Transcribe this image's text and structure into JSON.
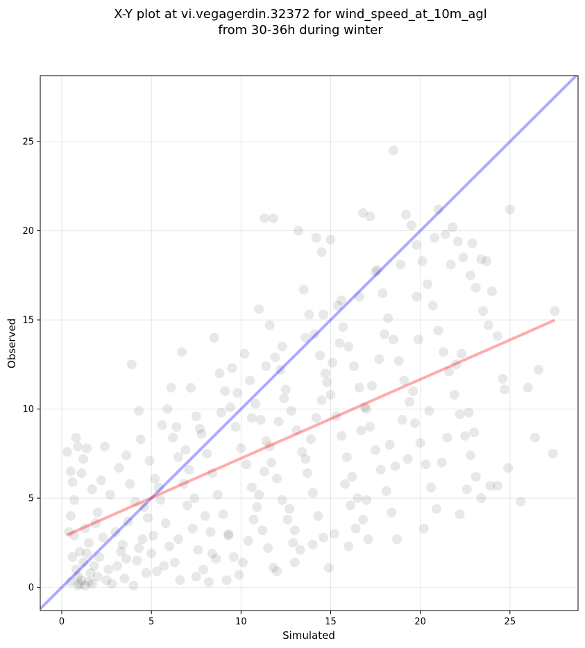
{
  "chart_data": {
    "type": "scatter",
    "title_line1": "X-Y plot at vi.vegagerdin.32372 for wind_speed_at_10m_agl",
    "title_line2": "from 30-36h during winter",
    "xlabel": "Simulated",
    "ylabel": "Observed",
    "xlim": [
      -1.2,
      28.8
    ],
    "ylim": [
      -1.3,
      28.7
    ],
    "xticks": [
      0,
      5,
      10,
      15,
      20,
      25
    ],
    "yticks": [
      0,
      5,
      10,
      15,
      20,
      25
    ],
    "grid": true,
    "point_color": "#000000",
    "point_alpha": 0.09,
    "points": [
      [
        1.0,
        0.2
      ],
      [
        1.1,
        0.4
      ],
      [
        0.9,
        0.6
      ],
      [
        1.3,
        0.1
      ],
      [
        1.5,
        0.3
      ],
      [
        0.8,
        1.0
      ],
      [
        1.2,
        1.4
      ],
      [
        1.0,
        2.0
      ],
      [
        1.6,
        0.8
      ],
      [
        1.8,
        1.2
      ],
      [
        2.0,
        0.6
      ],
      [
        0.5,
        0.3
      ],
      [
        0.6,
        1.7
      ],
      [
        0.7,
        2.9
      ],
      [
        0.4,
        3.1
      ],
      [
        0.5,
        4.0
      ],
      [
        0.7,
        4.9
      ],
      [
        0.6,
        5.9
      ],
      [
        0.5,
        6.5
      ],
      [
        0.3,
        7.6
      ],
      [
        0.8,
        8.4
      ],
      [
        0.9,
        7.9
      ],
      [
        1.2,
        7.2
      ],
      [
        1.4,
        7.8
      ],
      [
        1.1,
        6.4
      ],
      [
        1.7,
        5.5
      ],
      [
        2.2,
        6.0
      ],
      [
        2.4,
        7.9
      ],
      [
        2.0,
        4.2
      ],
      [
        2.7,
        5.2
      ],
      [
        3.0,
        3.1
      ],
      [
        3.3,
        2.0
      ],
      [
        2.6,
        1.0
      ],
      [
        3.5,
        0.5
      ],
      [
        4.0,
        0.1
      ],
      [
        4.2,
        1.5
      ],
      [
        4.5,
        2.7
      ],
      [
        4.8,
        3.9
      ],
      [
        4.1,
        4.8
      ],
      [
        3.8,
        5.8
      ],
      [
        3.2,
        6.7
      ],
      [
        3.6,
        7.4
      ],
      [
        4.4,
        8.3
      ],
      [
        3.9,
        12.5
      ],
      [
        4.3,
        9.9
      ],
      [
        4.9,
        7.1
      ],
      [
        5.2,
        6.1
      ],
      [
        5.5,
        4.9
      ],
      [
        5.8,
        3.6
      ],
      [
        6.0,
        2.3
      ],
      [
        6.3,
        1.4
      ],
      [
        6.6,
        0.4
      ],
      [
        5.3,
        0.9
      ],
      [
        5.0,
        1.9
      ],
      [
        5.6,
        9.1
      ],
      [
        5.9,
        10.0
      ],
      [
        6.2,
        8.4
      ],
      [
        6.5,
        7.3
      ],
      [
        6.8,
        5.8
      ],
      [
        7.0,
        4.6
      ],
      [
        7.3,
        3.3
      ],
      [
        7.6,
        2.1
      ],
      [
        7.9,
        1.0
      ],
      [
        8.2,
        0.3
      ],
      [
        6.7,
        13.2
      ],
      [
        7.2,
        11.2
      ],
      [
        7.5,
        9.6
      ],
      [
        7.8,
        8.6
      ],
      [
        8.1,
        7.5
      ],
      [
        8.4,
        6.4
      ],
      [
        8.7,
        5.2
      ],
      [
        9.0,
        4.1
      ],
      [
        9.3,
        2.9
      ],
      [
        9.6,
        1.7
      ],
      [
        9.9,
        0.7
      ],
      [
        8.5,
        14.0
      ],
      [
        8.8,
        12.0
      ],
      [
        9.1,
        11.0
      ],
      [
        9.4,
        10.1
      ],
      [
        9.7,
        9.0
      ],
      [
        10.0,
        7.8
      ],
      [
        10.3,
        6.9
      ],
      [
        10.6,
        5.6
      ],
      [
        10.9,
        4.5
      ],
      [
        11.2,
        3.2
      ],
      [
        11.5,
        2.2
      ],
      [
        11.8,
        1.1
      ],
      [
        9.5,
        12.3
      ],
      [
        10.2,
        13.1
      ],
      [
        10.5,
        11.6
      ],
      [
        10.8,
        10.3
      ],
      [
        11.1,
        9.4
      ],
      [
        11.4,
        8.2
      ],
      [
        11.7,
        7.0
      ],
      [
        12.0,
        6.1
      ],
      [
        12.3,
        4.9
      ],
      [
        12.6,
        3.8
      ],
      [
        12.9,
        2.5
      ],
      [
        11.3,
        20.7
      ],
      [
        11.8,
        20.7
      ],
      [
        11.0,
        15.6
      ],
      [
        11.6,
        14.7
      ],
      [
        11.9,
        12.9
      ],
      [
        12.2,
        12.2
      ],
      [
        12.5,
        11.1
      ],
      [
        12.8,
        9.9
      ],
      [
        13.1,
        8.8
      ],
      [
        13.4,
        7.6
      ],
      [
        13.7,
        6.4
      ],
      [
        14.0,
        5.3
      ],
      [
        14.3,
        4.0
      ],
      [
        14.6,
        2.8
      ],
      [
        14.9,
        1.1
      ],
      [
        13.2,
        20.0
      ],
      [
        13.5,
        16.7
      ],
      [
        13.8,
        15.3
      ],
      [
        14.1,
        14.2
      ],
      [
        14.4,
        13.0
      ],
      [
        14.7,
        12.0
      ],
      [
        15.0,
        10.8
      ],
      [
        15.3,
        9.6
      ],
      [
        15.6,
        8.5
      ],
      [
        15.9,
        7.3
      ],
      [
        16.2,
        6.2
      ],
      [
        16.5,
        5.0
      ],
      [
        16.8,
        3.8
      ],
      [
        17.1,
        2.7
      ],
      [
        14.2,
        19.6
      ],
      [
        14.5,
        18.8
      ],
      [
        15.0,
        19.5
      ],
      [
        15.4,
        15.8
      ],
      [
        15.7,
        14.6
      ],
      [
        16.0,
        13.5
      ],
      [
        16.3,
        12.4
      ],
      [
        16.6,
        11.2
      ],
      [
        16.9,
        10.1
      ],
      [
        17.2,
        9.0
      ],
      [
        17.5,
        7.7
      ],
      [
        17.8,
        6.6
      ],
      [
        18.1,
        5.4
      ],
      [
        18.4,
        4.2
      ],
      [
        18.7,
        2.7
      ],
      [
        16.8,
        21.0
      ],
      [
        17.2,
        20.8
      ],
      [
        17.6,
        17.8
      ],
      [
        17.9,
        16.5
      ],
      [
        18.2,
        15.1
      ],
      [
        18.5,
        13.9
      ],
      [
        18.8,
        12.7
      ],
      [
        19.1,
        11.6
      ],
      [
        19.4,
        10.4
      ],
      [
        19.7,
        9.2
      ],
      [
        20.0,
        8.1
      ],
      [
        20.3,
        6.9
      ],
      [
        20.6,
        5.6
      ],
      [
        20.9,
        4.4
      ],
      [
        18.5,
        24.5
      ],
      [
        19.2,
        20.9
      ],
      [
        19.5,
        20.3
      ],
      [
        19.8,
        19.2
      ],
      [
        20.1,
        18.3
      ],
      [
        20.4,
        17.0
      ],
      [
        20.7,
        15.8
      ],
      [
        21.0,
        14.4
      ],
      [
        21.3,
        13.2
      ],
      [
        21.6,
        12.1
      ],
      [
        21.9,
        10.8
      ],
      [
        22.2,
        9.7
      ],
      [
        22.5,
        8.5
      ],
      [
        22.8,
        7.4
      ],
      [
        23.1,
        6.2
      ],
      [
        23.4,
        5.0
      ],
      [
        21.0,
        21.2
      ],
      [
        21.4,
        19.8
      ],
      [
        21.8,
        20.2
      ],
      [
        22.1,
        19.4
      ],
      [
        22.4,
        18.5
      ],
      [
        22.8,
        17.5
      ],
      [
        23.1,
        16.8
      ],
      [
        23.4,
        18.4
      ],
      [
        23.7,
        18.3
      ],
      [
        24.0,
        16.6
      ],
      [
        24.3,
        14.1
      ],
      [
        24.6,
        11.7
      ],
      [
        24.9,
        6.7
      ],
      [
        22.2,
        4.1
      ],
      [
        22.6,
        5.5
      ],
      [
        23.9,
        5.7
      ],
      [
        24.3,
        5.7
      ],
      [
        24.7,
        11.1
      ],
      [
        25.0,
        21.2
      ],
      [
        25.6,
        4.8
      ],
      [
        26.0,
        11.2
      ],
      [
        26.4,
        8.4
      ],
      [
        26.6,
        12.2
      ],
      [
        27.4,
        7.5
      ],
      [
        27.5,
        15.5
      ],
      [
        2.8,
        0.2
      ],
      [
        3.1,
        1.2
      ],
      [
        3.4,
        2.4
      ],
      [
        1.9,
        3.6
      ],
      [
        2.3,
        2.8
      ],
      [
        1.5,
        2.5
      ],
      [
        1.3,
        3.3
      ],
      [
        2.1,
        1.7
      ],
      [
        2.5,
        0.4
      ],
      [
        1.7,
        0.2
      ],
      [
        0.9,
        0.1
      ],
      [
        1.4,
        1.9
      ],
      [
        6.1,
        11.2
      ],
      [
        6.4,
        9.0
      ],
      [
        7.1,
        6.6
      ],
      [
        7.4,
        5.0
      ],
      [
        8.0,
        4.0
      ],
      [
        8.3,
        3.1
      ],
      [
        8.6,
        1.6
      ],
      [
        9.2,
        0.4
      ],
      [
        10.1,
        1.4
      ],
      [
        10.4,
        2.6
      ],
      [
        10.7,
        3.8
      ],
      [
        11.0,
        5.2
      ],
      [
        11.3,
        6.5
      ],
      [
        11.6,
        7.9
      ],
      [
        12.1,
        9.3
      ],
      [
        12.4,
        10.6
      ],
      [
        12.7,
        4.4
      ],
      [
        13.0,
        3.2
      ],
      [
        13.3,
        2.1
      ],
      [
        13.6,
        7.2
      ],
      [
        13.9,
        8.3
      ],
      [
        14.2,
        9.5
      ],
      [
        14.5,
        10.5
      ],
      [
        14.8,
        11.5
      ],
      [
        15.1,
        12.6
      ],
      [
        15.5,
        13.7
      ],
      [
        15.8,
        5.8
      ],
      [
        16.1,
        4.6
      ],
      [
        16.4,
        3.3
      ],
      [
        16.7,
        8.8
      ],
      [
        17.0,
        10.0
      ],
      [
        17.3,
        11.3
      ],
      [
        17.7,
        12.8
      ],
      [
        18.0,
        14.2
      ],
      [
        18.3,
        8.0
      ],
      [
        18.6,
        6.8
      ],
      [
        19.0,
        9.4
      ],
      [
        19.3,
        7.2
      ],
      [
        19.6,
        11.0
      ],
      [
        19.9,
        13.9
      ],
      [
        20.2,
        3.3
      ],
      [
        20.5,
        9.9
      ],
      [
        21.2,
        7.0
      ],
      [
        21.5,
        8.4
      ],
      [
        22.0,
        12.5
      ],
      [
        22.3,
        13.1
      ],
      [
        22.7,
        9.8
      ],
      [
        23.0,
        8.7
      ],
      [
        23.5,
        15.5
      ],
      [
        23.8,
        14.7
      ],
      [
        3.7,
        3.7
      ],
      [
        4.6,
        4.5
      ],
      [
        5.4,
        5.6
      ],
      [
        6.9,
        7.7
      ],
      [
        7.7,
        8.9
      ],
      [
        8.9,
        9.8
      ],
      [
        9.8,
        10.9
      ],
      [
        10.6,
        9.5
      ],
      [
        11.4,
        12.4
      ],
      [
        12.3,
        13.5
      ],
      [
        13.6,
        14.0
      ],
      [
        14.6,
        15.3
      ],
      [
        15.6,
        16.1
      ],
      [
        16.6,
        16.3
      ],
      [
        17.5,
        17.7
      ],
      [
        18.9,
        18.1
      ],
      [
        19.8,
        16.3
      ],
      [
        20.8,
        19.6
      ],
      [
        21.7,
        18.1
      ],
      [
        22.9,
        19.3
      ],
      [
        7.5,
        0.6
      ],
      [
        8.4,
        1.9
      ],
      [
        9.3,
        3.0
      ],
      [
        5.7,
        1.2
      ],
      [
        6.5,
        2.7
      ],
      [
        4.7,
        0.8
      ],
      [
        5.1,
        2.9
      ],
      [
        3.6,
        1.6
      ],
      [
        4.3,
        2.2
      ],
      [
        12.0,
        0.9
      ],
      [
        13.0,
        1.4
      ],
      [
        14.0,
        2.4
      ],
      [
        15.2,
        3.0
      ],
      [
        16.0,
        2.3
      ],
      [
        17.0,
        4.9
      ]
    ]
  }
}
